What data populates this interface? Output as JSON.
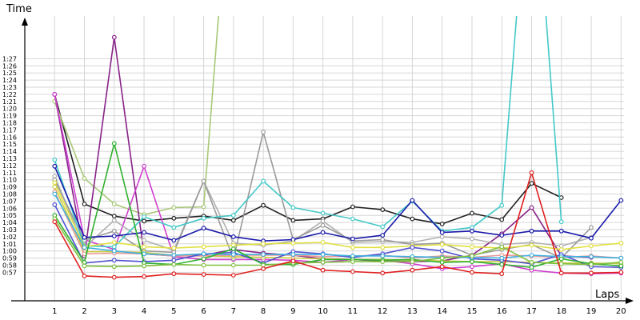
{
  "chart_data": {
    "type": "line",
    "xlabel": "Laps",
    "ylabel": "Time",
    "x": [
      1,
      2,
      3,
      4,
      5,
      6,
      7,
      8,
      9,
      10,
      11,
      12,
      13,
      14,
      15,
      16,
      17,
      18,
      19,
      20
    ],
    "xlim": [
      0,
      20.1
    ],
    "y_unit": "seconds",
    "ylim": [
      53,
      93
    ],
    "y_ticks": [
      57,
      58,
      59,
      60,
      61,
      62,
      63,
      64,
      65,
      66,
      67,
      68,
      69,
      70,
      71,
      72,
      73,
      74,
      75,
      76,
      77,
      78,
      79,
      80,
      81,
      82,
      83,
      84,
      85,
      86,
      87
    ],
    "y_tick_labels": [
      "0:57",
      "0:58",
      "0:59",
      "1:00",
      "1:01",
      "1:02",
      "1:03",
      "1:04",
      "1:05",
      "1:06",
      "1:07",
      "1:08",
      "1:09",
      "1:10",
      "1:11",
      "1:12",
      "1:13",
      "1:14",
      "1:15",
      "1:16",
      "1:17",
      "1:18",
      "1:19",
      "1:20",
      "1:21",
      "1:22",
      "1:23",
      "1:24",
      "1:25",
      "1:26",
      "1:27"
    ],
    "grid": true,
    "legend": "none",
    "series": [
      {
        "color": "#222222",
        "values": [
          82,
          66.6,
          64.9,
          64.2,
          64.6,
          64.9,
          64.3,
          66.4,
          64.3,
          64.5,
          66.2,
          65.8,
          64.5,
          63.8,
          65.3,
          64.4,
          69.5,
          67.5,
          null,
          null
        ]
      },
      {
        "color": "#a8c878",
        "values": [
          81,
          70.2,
          66.6,
          65.1,
          66.1,
          66.2,
          120,
          null,
          null,
          null,
          null,
          null,
          null,
          null,
          null,
          null,
          null,
          null,
          null,
          null
        ]
      },
      {
        "color": "#882288",
        "values": [
          82,
          59.3,
          90,
          59.6,
          59.3,
          59.4,
          60.2,
          59.7,
          59.4,
          58.9,
          58.8,
          58.6,
          58.5,
          58.6,
          59.4,
          62.4,
          66.1,
          59.3,
          59.1,
          null
        ]
      },
      {
        "color": "#d040d0",
        "values": [
          82,
          61.6,
          60.2,
          71.9,
          59.2,
          58.8,
          58.8,
          58.8,
          58.7,
          58.4,
          58.8,
          58.7,
          58.2,
          57.5,
          57.8,
          58.2,
          57.3,
          56.9,
          56.8,
          56.9
        ]
      },
      {
        "color": "#b0b0b0",
        "values": [
          70.5,
          60.5,
          64.3,
          61.5,
          60.1,
          69.8,
          61.1,
          60.8,
          61.4,
          64.2,
          61.2,
          61.3,
          61.2,
          62.0,
          61.7,
          60.9,
          61.2,
          60.7,
          61.9,
          null
        ]
      },
      {
        "color": "#9a9a9a",
        "values": [
          70,
          61.5,
          62.8,
          60.0,
          59.8,
          69.8,
          58.9,
          76.7,
          61.6,
          63.6,
          61.4,
          61.6,
          60.9,
          61.1,
          59.4,
          60.2,
          60.9,
          59.0,
          63.3,
          null
        ]
      },
      {
        "color": "#44c8c8",
        "values": [
          72.8,
          60.7,
          60.6,
          64.8,
          63.3,
          64.6,
          65.0,
          69.8,
          66.1,
          65.3,
          64.5,
          63.4,
          67.0,
          62.8,
          63.3,
          66.4,
          120,
          64.1,
          null,
          null
        ]
      },
      {
        "color": "#1a1aaa",
        "values": [
          71.9,
          61.9,
          62.1,
          62.6,
          61.5,
          63.2,
          62.0,
          61.4,
          61.6,
          62.6,
          61.7,
          62.2,
          67.1,
          62.6,
          62.8,
          62.2,
          62.8,
          62.8,
          61.8,
          67.1
        ]
      },
      {
        "color": "#e0e040",
        "values": [
          69.6,
          60.6,
          61.2,
          60.6,
          60.4,
          60.6,
          60.8,
          61.0,
          61.1,
          61.2,
          60.5,
          60.5,
          60.7,
          60.9,
          60.6,
          60.4,
          60.8,
          60.2,
          60.7,
          61.1
        ]
      },
      {
        "color": "#cccc44",
        "values": [
          69.0,
          59.9,
          59.9,
          59.8,
          59.4,
          59.3,
          59.2,
          59.1,
          59.0,
          58.9,
          58.8,
          58.8,
          58.7,
          58.6,
          58.5,
          58.5,
          58.4,
          58.3,
          58.3,
          58.2
        ]
      },
      {
        "color": "#e89898",
        "values": [
          68.3,
          59.6,
          59.7,
          59.6,
          59.3,
          59.3,
          59.4,
          59.4,
          59.4,
          59.2,
          59.3,
          59.4,
          59.0,
          59.3,
          59.1,
          59.4,
          59.3,
          59.1,
          59.3,
          59.0
        ]
      },
      {
        "color": "#5050d0",
        "values": [
          66.5,
          58.3,
          58.7,
          58.5,
          58.7,
          59.6,
          59.8,
          58.3,
          59.9,
          59.6,
          59.1,
          59.6,
          60.5,
          60.0,
          58.9,
          58.7,
          58.2,
          59.5,
          57.8,
          57.7
        ]
      },
      {
        "color": "#40b0e0",
        "values": [
          68.0,
          60.5,
          60.0,
          59.6,
          59.4,
          59.6,
          59.5,
          59.5,
          59.5,
          59.5,
          59.3,
          59.3,
          59.2,
          59.1,
          59.1,
          59.0,
          59.4,
          59.2,
          59.2,
          59.0
        ]
      },
      {
        "color": "#30b030",
        "values": [
          65.0,
          58.4,
          75.1,
          58.3,
          58.1,
          58.9,
          60.3,
          58.1,
          58.1,
          58.8,
          58.8,
          58.7,
          58.8,
          58.4,
          58.5,
          58.1,
          57.7,
          58.9,
          58.2,
          57.9
        ]
      },
      {
        "color": "#80c040",
        "values": [
          64.5,
          57.9,
          57.8,
          57.9,
          58.1,
          58.0,
          58.0,
          58.0,
          58.3,
          58.4,
          58.5,
          58.5,
          58.5,
          59.0,
          59.3,
          60.6,
          58.4,
          58.2,
          58.1,
          58.4
        ]
      },
      {
        "color": "#e02020",
        "values": [
          64.1,
          56.5,
          56.3,
          56.4,
          56.8,
          56.7,
          56.6,
          57.5,
          58.6,
          57.3,
          57.1,
          56.9,
          57.3,
          57.8,
          57.0,
          56.8,
          71.0,
          56.9,
          56.9,
          57.0
        ]
      }
    ]
  }
}
